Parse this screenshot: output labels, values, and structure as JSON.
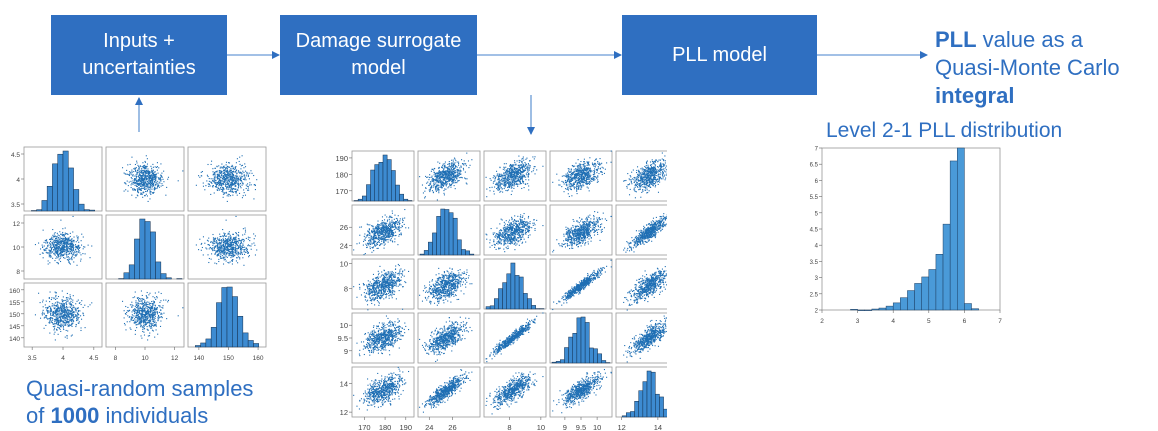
{
  "flow": {
    "box_inputs": {
      "line1": "Inputs +",
      "line2": "uncertainties"
    },
    "box_damage": {
      "line1": "Damage surrogate",
      "line2": "model"
    },
    "box_pll": {
      "line1": "PLL model"
    },
    "result": {
      "pre": "PLL",
      "mid": " value as a",
      "line2": "Quasi-Monte Carlo",
      "line3": "integral"
    }
  },
  "captions": {
    "pll_distribution": "Level 2-1 PLL distribution",
    "samples_line1": "Quasi-random samples",
    "samples_pre": "of ",
    "samples_count": "1000",
    "samples_post": " individuals"
  },
  "colors": {
    "box": "#2f6fc1",
    "marker": "#1f6fb4",
    "bar": "#4a9ad8"
  },
  "chart_data": [
    {
      "type": "scatter",
      "subtype": "scatter-matrix",
      "n_samples": 1000,
      "variables": [
        {
          "mean": 4,
          "sd": 0.15,
          "range": [
            3.4,
            4.6
          ],
          "ticks": [
            "3.5",
            "4",
            "4.5"
          ]
        },
        {
          "mean": 10,
          "sd": 0.6,
          "range": [
            7.5,
            12.5
          ],
          "ticks": [
            "8",
            "10",
            "12"
          ]
        },
        {
          "mean": 150,
          "sd": 3.5,
          "range": [
            137,
            162
          ],
          "ticks": [
            "140",
            "145",
            "150",
            "155",
            "160"
          ],
          "xticks": [
            "140",
            "150",
            "160"
          ]
        }
      ],
      "correlations": [
        [
          1,
          0,
          0
        ],
        [
          0,
          1,
          0
        ],
        [
          0,
          0,
          1
        ]
      ]
    },
    {
      "type": "scatter",
      "subtype": "scatter-matrix",
      "n_samples": 1000,
      "variables": [
        {
          "mean": 179,
          "sd": 4.5,
          "range": [
            165,
            193
          ],
          "ticks": [
            "170",
            "180",
            "190"
          ]
        },
        {
          "mean": 25.5,
          "sd": 0.8,
          "range": [
            23.2,
            28.2
          ],
          "ticks": [
            "24",
            "26"
          ]
        },
        {
          "mean": 8.2,
          "sd": 0.6,
          "range": [
            6.5,
            10.2
          ],
          "ticks": [
            "8",
            "10"
          ],
          "yticks": [
            "8",
            "10"
          ]
        },
        {
          "mean": 9.5,
          "sd": 0.3,
          "range": [
            8.6,
            10.4
          ],
          "ticks": [
            "9",
            "9.5",
            "10"
          ]
        },
        {
          "mean": 13.5,
          "sd": 0.5,
          "range": [
            11.8,
            15.0
          ],
          "ticks": [
            "12",
            "14"
          ]
        }
      ],
      "correlations": [
        [
          1,
          0.5,
          0.5,
          0.5,
          0.5
        ],
        [
          0.5,
          1,
          0.5,
          0.6,
          0.85
        ],
        [
          0.5,
          0.5,
          1,
          0.95,
          0.7
        ],
        [
          0.5,
          0.6,
          0.95,
          1,
          0.75
        ],
        [
          0.5,
          0.85,
          0.7,
          0.75,
          1
        ]
      ]
    },
    {
      "type": "bar",
      "subtype": "histogram",
      "x_range": [
        2,
        7
      ],
      "y_range": [
        2,
        7
      ],
      "xticks": [
        "2",
        "3",
        "4",
        "5",
        "6",
        "7"
      ],
      "yticks": [
        "2",
        "2.5",
        "3",
        "3.5",
        "4",
        "4.5",
        "5",
        "5.5",
        "6",
        "6.5",
        "7"
      ],
      "bin_width": 0.2,
      "bins": [
        {
          "x0": 2.8,
          "value": 2.02
        },
        {
          "x0": 3.0,
          "value": 2.0
        },
        {
          "x0": 3.2,
          "value": 2.0
        },
        {
          "x0": 3.4,
          "value": 2.03
        },
        {
          "x0": 3.6,
          "value": 2.06
        },
        {
          "x0": 3.8,
          "value": 2.12
        },
        {
          "x0": 4.0,
          "value": 2.22
        },
        {
          "x0": 4.2,
          "value": 2.38
        },
        {
          "x0": 4.4,
          "value": 2.6
        },
        {
          "x0": 4.6,
          "value": 2.82
        },
        {
          "x0": 4.8,
          "value": 3.02
        },
        {
          "x0": 5.0,
          "value": 3.25
        },
        {
          "x0": 5.2,
          "value": 3.72
        },
        {
          "x0": 5.4,
          "value": 4.65
        },
        {
          "x0": 5.6,
          "value": 6.6
        },
        {
          "x0": 5.8,
          "value": 7.0
        },
        {
          "x0": 6.0,
          "value": 2.2
        },
        {
          "x0": 6.2,
          "value": 2.04
        }
      ]
    }
  ]
}
